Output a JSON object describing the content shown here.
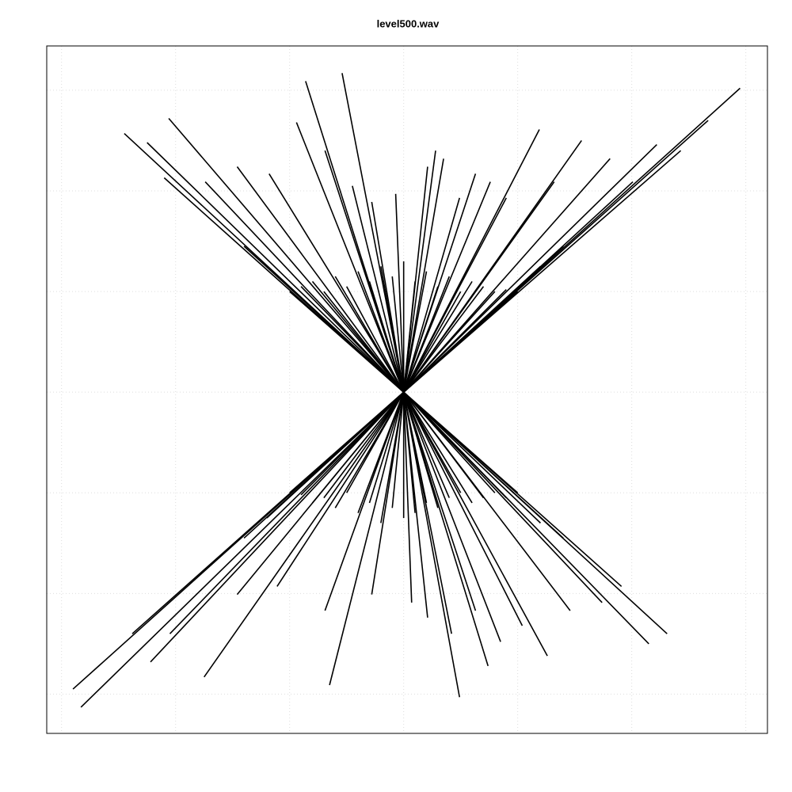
{
  "chart_data": {
    "type": "vector",
    "title": "level500.wav",
    "color": "#000000",
    "grid": true,
    "xlim": [
      -3.13,
      3.19
    ],
    "ylim": [
      -3.39,
      3.44
    ],
    "xticks": [
      -3,
      -2,
      -1,
      0,
      1,
      2,
      3
    ],
    "yticks": [
      -3,
      -2,
      -1,
      0,
      1,
      2,
      3
    ],
    "x": [
      -2.45,
      -2.06,
      -2.25,
      -2.1,
      -0.86,
      -0.54,
      -0.94,
      -0.45,
      0.28,
      0.21,
      1.19,
      1.56,
      2.22,
      2.95,
      2.67,
      1.81,
      0.63,
      0.9,
      -0.07,
      -0.28,
      -1.46,
      -1.74,
      -1.18,
      -0.69,
      0.35,
      1.32,
      2.01,
      2.43,
      0.49,
      0.76,
      -1.0,
      -0.9,
      -0.8,
      -0.7,
      -0.6,
      -0.5,
      -0.4,
      -0.3,
      -0.2,
      -0.1,
      0.0,
      0.1,
      0.2,
      0.3,
      0.4,
      0.5,
      0.6,
      0.7,
      0.8,
      0.9,
      1.0,
      -1.2,
      1.2,
      -1.4,
      1.4,
      -2.9,
      -2.83,
      -1.75,
      -2.22,
      -2.38,
      -0.65,
      0.49,
      0.74,
      1.26,
      2.31,
      2.15,
      1.91,
      0.85,
      0.42,
      0.07,
      -0.28,
      -0.69,
      -1.11,
      -1.46,
      -2.05,
      0.21,
      1.04,
      1.46,
      1.74,
      0.63,
      -1.0,
      -0.9,
      -0.8,
      -0.7,
      -0.6,
      -0.5,
      -0.4,
      -0.3,
      -0.2,
      -0.1,
      0.0,
      0.1,
      0.2,
      0.3,
      0.4,
      0.5,
      0.6,
      0.7,
      0.8,
      0.9,
      1.0,
      -1.2,
      1.2,
      -1.4,
      1.4
    ],
    "values": [
      2.57,
      2.72,
      2.48,
      2.13,
      3.09,
      3.17,
      2.68,
      2.05,
      2.4,
      2.24,
      2.61,
      2.5,
      2.46,
      3.02,
      2.7,
      2.32,
      2.17,
      1.93,
      1.97,
      1.89,
      2.24,
      2.09,
      2.17,
      2.4,
      2.32,
      2.09,
      2.09,
      2.4,
      1.93,
      2.09,
      1.0,
      1.05,
      1.1,
      1.0,
      1.15,
      1.05,
      1.2,
      1.1,
      1.25,
      1.15,
      1.3,
      1.1,
      1.2,
      1.05,
      1.15,
      1.0,
      1.1,
      1.05,
      1.0,
      1.02,
      1.0,
      1.25,
      1.25,
      1.45,
      1.45,
      -2.95,
      -3.13,
      -2.83,
      -2.68,
      -2.4,
      -2.91,
      -3.03,
      -2.72,
      -2.62,
      -2.4,
      -2.5,
      -1.93,
      -2.48,
      -2.4,
      -2.09,
      -2.01,
      -2.17,
      -1.93,
      -2.01,
      -2.4,
      -2.24,
      -2.32,
      -2.17,
      -2.09,
      -2.17,
      -1.0,
      -1.02,
      -1.1,
      -1.05,
      -1.15,
      -1.0,
      -1.2,
      -1.1,
      -1.3,
      -1.15,
      -1.25,
      -1.2,
      -1.1,
      -1.15,
      -1.05,
      -1.0,
      -1.1,
      -1.05,
      -1.0,
      -1.05,
      -1.0,
      -1.25,
      -1.3,
      -1.45,
      -1.45
    ]
  }
}
